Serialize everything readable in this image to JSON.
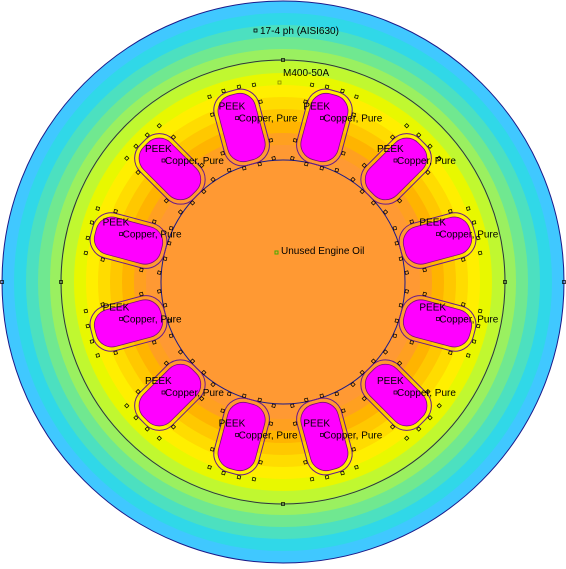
{
  "materials": {
    "housing": "17-4 ph (AISI630)",
    "lamination": "M400-50A",
    "rotor_fluid": "Unused Engine Oil",
    "insulation": "PEEK",
    "conductor": "Copper, Pure"
  },
  "colors": {
    "slot_fill": "#ff00ff",
    "outline": "#1a1a8a",
    "marker": "#000000",
    "fluid_marker": "#44aa00",
    "lamination_marker": "#8a8a00",
    "contour_levels": [
      "#ff9933",
      "#ffa020",
      "#ffb400",
      "#ffc800",
      "#ffdc00",
      "#ffef00",
      "#e8f800",
      "#c0f830",
      "#9af060",
      "#70e890",
      "#4ce0c0",
      "#30d8e8",
      "#40c8ff"
    ]
  },
  "slot_count": 12,
  "slots": [
    {
      "index": 1,
      "insulation_label": "PEEK",
      "conductor_label": "Copper, Pure"
    },
    {
      "index": 2,
      "insulation_label": "PEEK",
      "conductor_label": "Copper, Pure"
    },
    {
      "index": 3,
      "insulation_label": "PEEK",
      "conductor_label": "Copper, Pure"
    },
    {
      "index": 4,
      "insulation_label": "PEEK",
      "conductor_label": "Copper, Pure"
    },
    {
      "index": 5,
      "insulation_label": "PEEK",
      "conductor_label": "Copper, Pure"
    },
    {
      "index": 6,
      "insulation_label": "PEEK",
      "conductor_label": "Copper, Pure"
    },
    {
      "index": 7,
      "insulation_label": "PEEK",
      "conductor_label": "Copper, Pure"
    },
    {
      "index": 8,
      "insulation_label": "PEEK",
      "conductor_label": "Copper, Pure"
    },
    {
      "index": 9,
      "insulation_label": "PEEK",
      "conductor_label": "Copper, Pure"
    },
    {
      "index": 10,
      "insulation_label": "PEEK",
      "conductor_label": "Copper, Pure"
    },
    {
      "index": 11,
      "insulation_label": "PEEK",
      "conductor_label": "Copper, Pure"
    },
    {
      "index": 12,
      "insulation_label": "PEEK",
      "conductor_label": "Copper, Pure"
    }
  ]
}
